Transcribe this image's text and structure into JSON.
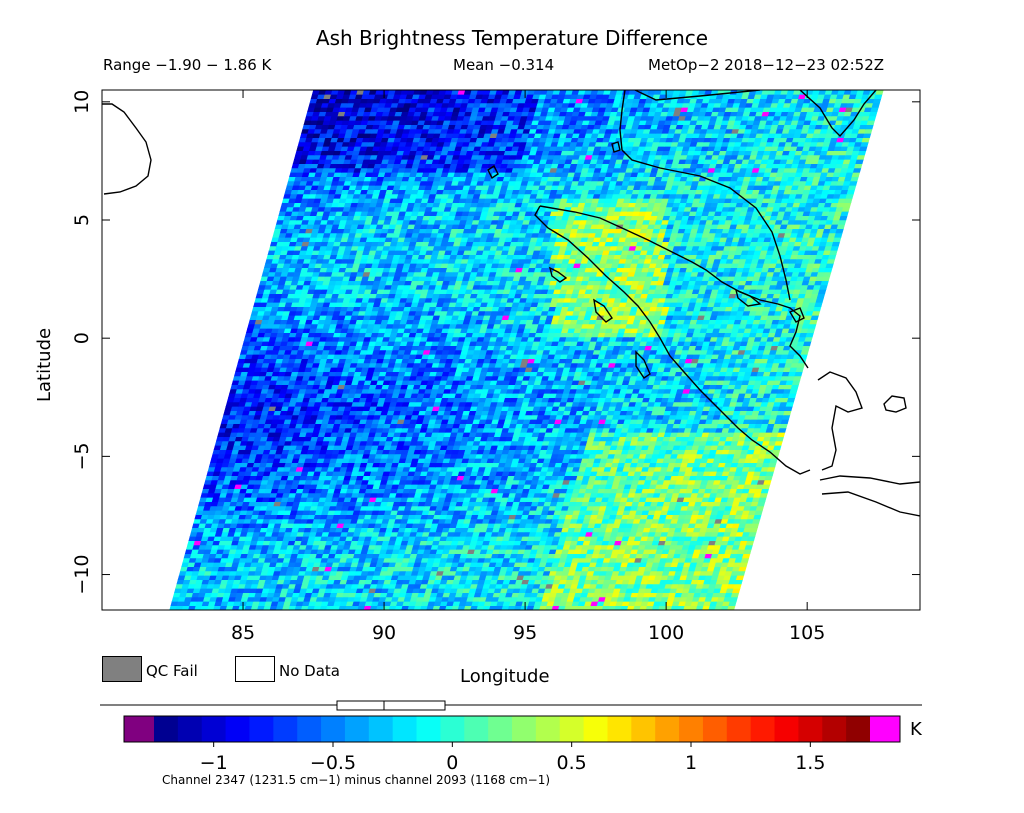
{
  "header": {
    "title": "Ash Brightness Temperature Difference",
    "range": "Range −1.90 − 1.86 K",
    "mean": "Mean −0.314",
    "satellite": "MetOp−2 2018−12−23 02:52Z"
  },
  "legend": {
    "qc_fail": "QC Fail",
    "no_data": "No Data",
    "qc_fail_color": "#808080",
    "no_data_color": "#ffffff"
  },
  "colorbar": {
    "unit": "K",
    "ticks": [
      "−1",
      "−0.5",
      "0",
      "0.5",
      "1",
      "1.5"
    ],
    "footer": "Channel 2347 (1231.5 cm−1) minus channel 2093 (1168 cm−1)",
    "under_color": "#800080",
    "over_color": "#ff00ff"
  },
  "chart_data": {
    "type": "heatmap",
    "title": "Ash Brightness Temperature Difference",
    "xlabel": "Longitude",
    "ylabel": "Latitude",
    "xlim": [
      80,
      109
    ],
    "ylim": [
      -11.5,
      10.5
    ],
    "xticks": [
      "85",
      "90",
      "95",
      "100",
      "105"
    ],
    "yticks": [
      "10",
      "5",
      "0",
      "−5",
      "−10"
    ],
    "value_range": [
      -1.9,
      1.86
    ],
    "value_mean": -0.314,
    "colorbar_range": [
      -1.25,
      1.75
    ],
    "swath_corners": [
      [
        82.4,
        -11.5
      ],
      [
        102.4,
        -11.5
      ],
      [
        107.7,
        10.5
      ],
      [
        87.5,
        10.5
      ]
    ]
  }
}
